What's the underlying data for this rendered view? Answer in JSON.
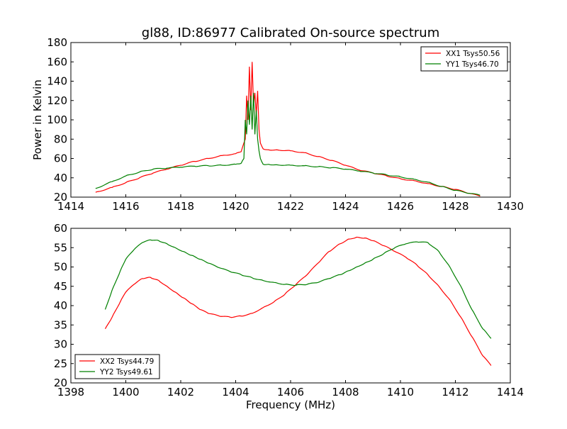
{
  "title": "gl88, ID:86977 Calibrated On-source spectrum",
  "chart_data": [
    {
      "type": "line",
      "title": "gl88, ID:86977 Calibrated On-source spectrum",
      "xlabel": "",
      "ylabel": "Power in Kelvin",
      "xlim": [
        1414,
        1430
      ],
      "ylim": [
        20,
        180
      ],
      "xticks": [
        1414,
        1416,
        1418,
        1420,
        1422,
        1424,
        1426,
        1428,
        1430
      ],
      "yticks": [
        20,
        40,
        60,
        80,
        100,
        120,
        140,
        160,
        180
      ],
      "legend_position": "top-right",
      "grid": false,
      "series": [
        {
          "name": "XX1 Tsys50.56",
          "color": "#ff0000",
          "x": [
            1414.9,
            1415.5,
            1416.0,
            1416.5,
            1417.0,
            1417.5,
            1418.0,
            1418.5,
            1419.0,
            1419.5,
            1420.0,
            1420.2,
            1420.35,
            1420.4,
            1420.45,
            1420.5,
            1420.55,
            1420.6,
            1420.65,
            1420.7,
            1420.75,
            1420.8,
            1420.85,
            1420.9,
            1421.0,
            1421.2,
            1421.5,
            1422.0,
            1422.5,
            1423.0,
            1423.5,
            1424.0,
            1424.5,
            1425.0,
            1425.5,
            1426.0,
            1426.5,
            1427.0,
            1427.5,
            1428.0,
            1428.5,
            1428.9
          ],
          "y": [
            25,
            30,
            35,
            40,
            45,
            49,
            53,
            57,
            60,
            63,
            65,
            67,
            80,
            125,
            100,
            155,
            110,
            160,
            115,
            128,
            105,
            130,
            90,
            76,
            70,
            69,
            69,
            68,
            66,
            62,
            58,
            53,
            48,
            45,
            42,
            39,
            37,
            34,
            31,
            28,
            24,
            21
          ]
        },
        {
          "name": "YY1 Tsys46.70",
          "color": "#008000",
          "x": [
            1414.9,
            1415.5,
            1416.0,
            1416.5,
            1417.0,
            1417.5,
            1418.0,
            1418.5,
            1419.0,
            1419.5,
            1420.0,
            1420.2,
            1420.3,
            1420.35,
            1420.4,
            1420.45,
            1420.5,
            1420.55,
            1420.6,
            1420.65,
            1420.7,
            1420.75,
            1420.8,
            1420.85,
            1420.9,
            1421.0,
            1421.2,
            1421.5,
            1422.0,
            1422.5,
            1423.0,
            1423.5,
            1424.0,
            1424.5,
            1425.0,
            1425.5,
            1426.0,
            1426.5,
            1427.0,
            1427.5,
            1428.0,
            1428.5,
            1428.9
          ],
          "y": [
            29,
            36,
            42,
            46,
            49,
            50,
            51,
            52,
            52.5,
            53,
            54,
            55,
            60,
            100,
            85,
            120,
            95,
            125,
            90,
            128,
            85,
            110,
            80,
            68,
            60,
            54,
            54,
            53.5,
            53,
            52.5,
            51.5,
            50.5,
            49,
            47,
            45,
            43,
            41,
            38.5,
            35.5,
            31,
            27,
            24,
            22
          ]
        }
      ]
    },
    {
      "type": "line",
      "title": "",
      "xlabel": "Frequency (MHz)",
      "ylabel": "",
      "xlim": [
        1398,
        1414
      ],
      "ylim": [
        20,
        60
      ],
      "xticks": [
        1398,
        1400,
        1402,
        1404,
        1406,
        1408,
        1410,
        1412,
        1414
      ],
      "yticks": [
        20,
        25,
        30,
        35,
        40,
        45,
        50,
        55,
        60
      ],
      "legend_position": "bottom-left",
      "grid": false,
      "series": [
        {
          "name": "XX2 Tsys44.79",
          "color": "#ff0000",
          "x": [
            1399.25,
            1399.5,
            1399.8,
            1400.0,
            1400.3,
            1400.6,
            1400.9,
            1401.2,
            1401.5,
            1401.8,
            1402.1,
            1402.4,
            1402.7,
            1403.0,
            1403.4,
            1403.8,
            1404.2,
            1404.6,
            1405.0,
            1405.4,
            1405.8,
            1406.2,
            1406.6,
            1407.0,
            1407.4,
            1407.8,
            1408.1,
            1408.4,
            1408.7,
            1409.0,
            1409.4,
            1409.8,
            1410.2,
            1410.6,
            1411.0,
            1411.4,
            1411.8,
            1412.2,
            1412.6,
            1413.0,
            1413.3
          ],
          "y": [
            34,
            37,
            41,
            43.5,
            45.5,
            47,
            47.3,
            46.5,
            45,
            43.5,
            42,
            40.5,
            39,
            38,
            37.3,
            37,
            37.3,
            38,
            39.5,
            41,
            43,
            45.5,
            48,
            51,
            54,
            56,
            57.2,
            57.7,
            57.5,
            56.8,
            55.5,
            54,
            52.5,
            50.5,
            48,
            45,
            41.5,
            37,
            32,
            27,
            24.5
          ]
        },
        {
          "name": "YY2 Tsys49.61",
          "color": "#008000",
          "x": [
            1399.25,
            1399.5,
            1399.8,
            1400.0,
            1400.3,
            1400.6,
            1400.9,
            1401.2,
            1401.5,
            1401.8,
            1402.1,
            1402.4,
            1402.7,
            1403.0,
            1403.4,
            1403.8,
            1404.2,
            1404.6,
            1405.0,
            1405.4,
            1405.8,
            1406.2,
            1406.6,
            1407.0,
            1407.4,
            1407.8,
            1408.1,
            1408.4,
            1408.7,
            1409.0,
            1409.4,
            1409.8,
            1410.2,
            1410.6,
            1411.0,
            1411.4,
            1411.8,
            1412.2,
            1412.6,
            1413.0,
            1413.3
          ],
          "y": [
            39,
            44,
            49,
            52,
            54.5,
            56.3,
            57,
            56.8,
            56,
            55,
            54,
            53,
            52,
            51,
            49.8,
            48.8,
            48,
            47.2,
            46.5,
            46,
            45.5,
            45.3,
            45.5,
            46,
            47,
            48,
            49,
            50,
            51,
            52,
            53.5,
            55,
            56,
            56.5,
            56.3,
            54,
            50,
            45,
            39,
            34,
            31.5
          ]
        }
      ]
    }
  ]
}
